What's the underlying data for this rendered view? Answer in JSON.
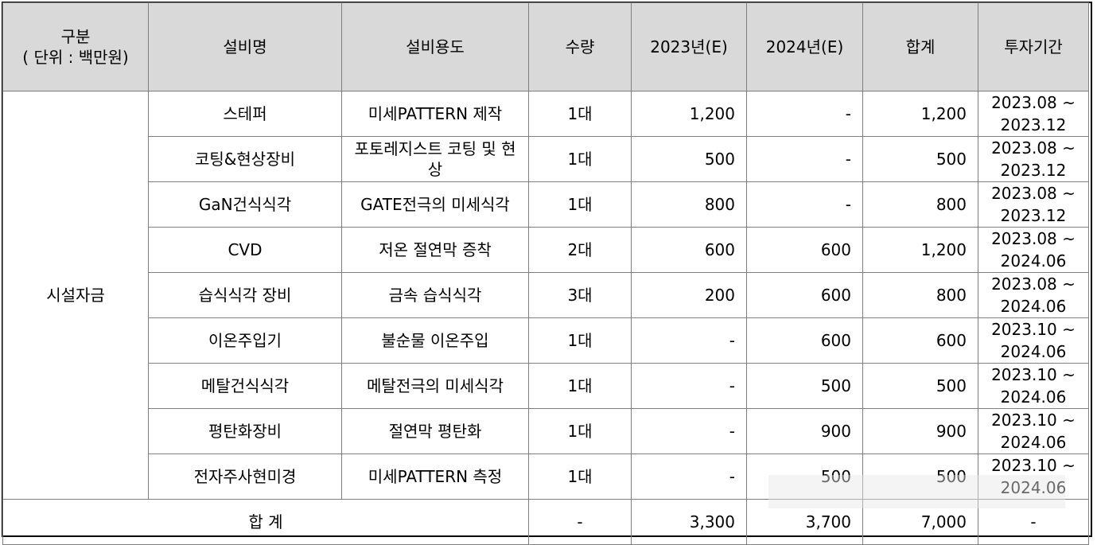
{
  "headers": {
    "category_line1": "구분",
    "category_line2": "( 단위 : 백만원)",
    "equipment_name": "설비명",
    "equipment_use": "설비용도",
    "quantity": "수량",
    "y2023": "2023년(E)",
    "y2024": "2024년(E)",
    "total": "합계",
    "period": "투자기간"
  },
  "category_label": "시설자금",
  "rows": [
    {
      "name": "스테퍼",
      "use": "미세PATTERN 제작",
      "qty": "1대",
      "y2023": "1,200",
      "y2024": "-",
      "total": "1,200",
      "period_start": "2023.08 ~",
      "period_end": "2023.12"
    },
    {
      "name": "코팅&현상장비",
      "use": "포토레지스트 코팅 및 현상",
      "qty": "1대",
      "y2023": "500",
      "y2024": "-",
      "total": "500",
      "period_start": "2023.08 ~",
      "period_end": "2023.12"
    },
    {
      "name": "GaN건식식각",
      "use": "GATE전극의 미세식각",
      "qty": "1대",
      "y2023": "800",
      "y2024": "-",
      "total": "800",
      "period_start": "2023.08 ~",
      "period_end": "2023.12"
    },
    {
      "name": "CVD",
      "use": "저온 절연막 증착",
      "qty": "2대",
      "y2023": "600",
      "y2024": "600",
      "total": "1,200",
      "period_start": "2023.08 ~",
      "period_end": "2024.06"
    },
    {
      "name": "습식식각 장비",
      "use": "금속 습식식각",
      "qty": "3대",
      "y2023": "200",
      "y2024": "600",
      "total": "800",
      "period_start": "2023.08 ~",
      "period_end": "2024.06"
    },
    {
      "name": "이온주입기",
      "use": "불순물 이온주입",
      "qty": "1대",
      "y2023": "-",
      "y2024": "600",
      "total": "600",
      "period_start": "2023.10 ~",
      "period_end": "2024.06"
    },
    {
      "name": "메탈건식식각",
      "use": "메탈전극의 미세식각",
      "qty": "1대",
      "y2023": "-",
      "y2024": "500",
      "total": "500",
      "period_start": "2023.10 ~",
      "period_end": "2024.06"
    },
    {
      "name": "평탄화장비",
      "use": "절연막 평탄화",
      "qty": "1대",
      "y2023": "-",
      "y2024": "900",
      "total": "900",
      "period_start": "2023.10 ~",
      "period_end": "2024.06"
    },
    {
      "name": "전자주사현미경",
      "use": "미세PATTERN 측정",
      "qty": "1대",
      "y2023": "-",
      "y2024": "500",
      "total": "500",
      "period_start": "2023.10 ~",
      "period_end": "2024.06"
    }
  ],
  "footer": {
    "label": "합 계",
    "qty": "-",
    "y2023": "3,300",
    "y2024": "3,700",
    "total": "7,000",
    "period": "-"
  }
}
